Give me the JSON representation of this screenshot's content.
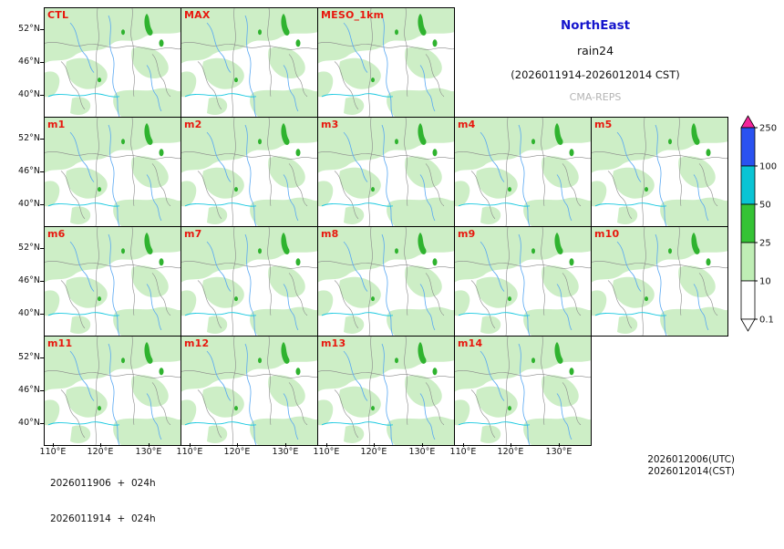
{
  "title": {
    "region": "NorthEast",
    "variable": "rain24",
    "period": "(2026011914-2026012014 CST)",
    "model": "CMA-REPS"
  },
  "panels": [
    {
      "label": "CTL",
      "row": 0,
      "col": 0
    },
    {
      "label": "MAX",
      "row": 0,
      "col": 1
    },
    {
      "label": "MESO_1km",
      "row": 0,
      "col": 2
    },
    {
      "label": "m1",
      "row": 1,
      "col": 0
    },
    {
      "label": "m2",
      "row": 1,
      "col": 1
    },
    {
      "label": "m3",
      "row": 1,
      "col": 2
    },
    {
      "label": "m4",
      "row": 1,
      "col": 3
    },
    {
      "label": "m5",
      "row": 1,
      "col": 4
    },
    {
      "label": "m6",
      "row": 2,
      "col": 0
    },
    {
      "label": "m7",
      "row": 2,
      "col": 1
    },
    {
      "label": "m8",
      "row": 2,
      "col": 2
    },
    {
      "label": "m9",
      "row": 2,
      "col": 3
    },
    {
      "label": "m10",
      "row": 2,
      "col": 4
    },
    {
      "label": "m11",
      "row": 3,
      "col": 0
    },
    {
      "label": "m12",
      "row": 3,
      "col": 1
    },
    {
      "label": "m13",
      "row": 3,
      "col": 2
    },
    {
      "label": "m14",
      "row": 3,
      "col": 3
    }
  ],
  "axes": {
    "y_ticks": [
      "52°N",
      "46°N",
      "40°N"
    ],
    "x_ticks": [
      "110°E",
      "120°E",
      "130°E"
    ]
  },
  "colorbar": {
    "ticks": [
      "250",
      "100",
      "50",
      "25",
      "10",
      "0.1"
    ],
    "colors": {
      "above_250": "#f4259b",
      "100_250": "#2a52f0",
      "50_100": "#0ac4d4",
      "25_50": "#35c335",
      "10_25": "#bfeeb5",
      "0.1_10": "#ffffff"
    }
  },
  "footer": {
    "left1": "2026011906  +  024h",
    "left2": "2026011914  +  024h",
    "right1": "2026012006(UTC)",
    "right2": "2026012014(CST)"
  },
  "chart_data": {
    "type": "heatmap",
    "title": "rain24",
    "region": "NorthEast",
    "valid_period": "(2026011914-2026012014 CST)",
    "model": "CMA-REPS",
    "panel_labels": [
      "CTL",
      "MAX",
      "MESO_1km",
      "m1",
      "m2",
      "m3",
      "m4",
      "m5",
      "m6",
      "m7",
      "m8",
      "m9",
      "m10",
      "m11",
      "m12",
      "m13",
      "m14"
    ],
    "grid_layout": {
      "rows": 4,
      "panels_per_row": [
        3,
        5,
        5,
        4
      ]
    },
    "x_tick_labels": [
      "110°E",
      "120°E",
      "130°E"
    ],
    "y_tick_labels": [
      "52°N",
      "46°N",
      "40°N"
    ],
    "colorbar_levels": [
      0.1,
      10,
      25,
      50,
      100,
      250
    ],
    "colorbar_colors": [
      "#ffffff",
      "#bfeeb5",
      "#35c335",
      "#0ac4d4",
      "#2a52f0",
      "#f4259b"
    ],
    "init_times": [
      "2026011906 + 024h",
      "2026011914 + 024h"
    ],
    "valid_times": [
      "2026012006(UTC)",
      "2026012014(CST)"
    ],
    "legend_position": "right"
  }
}
